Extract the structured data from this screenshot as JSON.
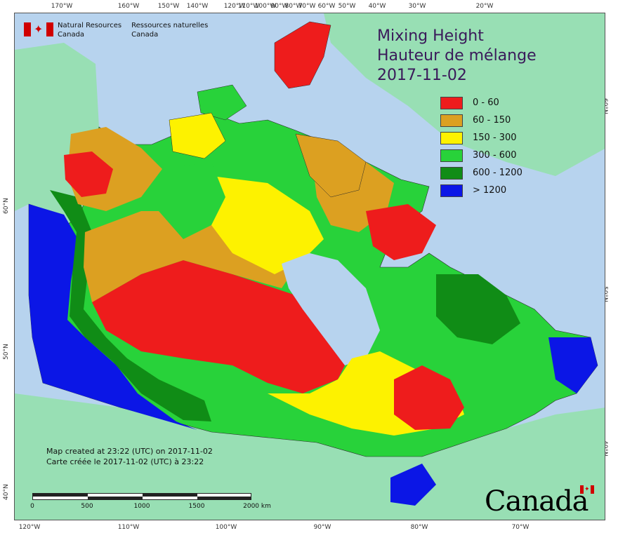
{
  "header": {
    "agency_en_line1": "Natural Resources",
    "agency_en_line2": "Canada",
    "agency_fr_line1": "Ressources naturelles",
    "agency_fr_line2": "Canada"
  },
  "title": {
    "line1": "Mixing Height",
    "line2": "Hauteur de mélange",
    "date": "2017-11-02"
  },
  "legend": [
    {
      "label": "0 - 60",
      "color": "#ee1c1c"
    },
    {
      "label": "60 - 150",
      "color": "#dca021"
    },
    {
      "label": "150 - 300",
      "color": "#fdf200"
    },
    {
      "label": "300 - 600",
      "color": "#28d23a"
    },
    {
      "label": "600 - 1200",
      "color": "#108c16"
    },
    {
      "label": "> 1200",
      "color": "#0b16e6"
    }
  ],
  "timestamp": {
    "en": "Map created at 23:22 (UTC) on 2017-11-02",
    "fr": "Carte créée le 2017-11-02 (UTC) à 23:22"
  },
  "scalebar": {
    "labels": [
      "0",
      "500",
      "1000",
      "1500",
      "2000 km"
    ]
  },
  "axis_ticks": {
    "top": [
      "170°W",
      "160°W",
      "150°W",
      "140°W",
      "120°W",
      "100°W",
      "80°W",
      "60°W",
      "50°W",
      "40°W",
      "30°W",
      "20°W",
      "110°W",
      "90°W",
      "70°W"
    ],
    "bottom": [
      "120°W",
      "110°W",
      "100°W",
      "90°W",
      "80°W",
      "70°W"
    ],
    "left": [
      "60°N",
      "50°N",
      "40°N"
    ],
    "right": [
      "60°N",
      "50°N",
      "40°N"
    ]
  },
  "footer": {
    "wordmark": "Canada"
  },
  "colors": {
    "ocean": "#b7d3ee",
    "foreign_land": "#98dfb4"
  }
}
